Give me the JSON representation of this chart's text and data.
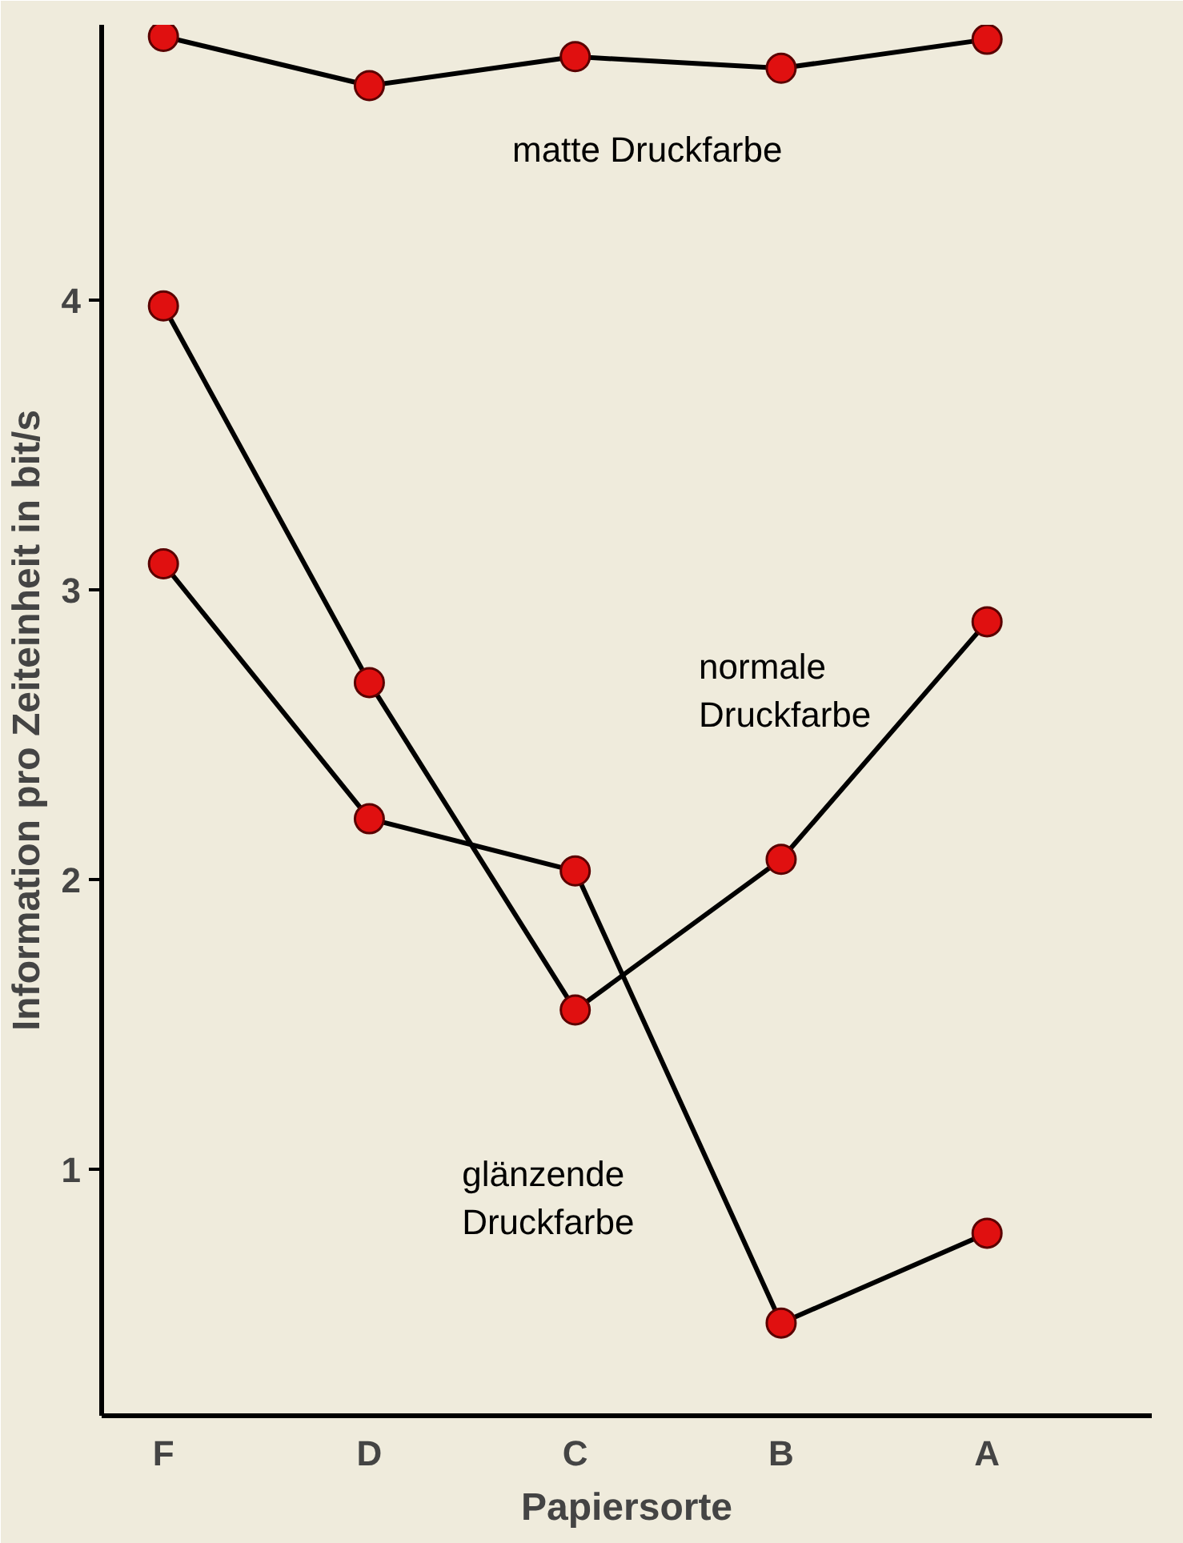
{
  "chart_data": {
    "type": "line",
    "categories": [
      "F",
      "D",
      "C",
      "B",
      "A"
    ],
    "xlabel": "Papiersorte",
    "ylabel": "Information pro Zeiteinheit in bit/s",
    "ylim": [
      0.15,
      4.95
    ],
    "yticks": [
      1,
      2,
      3,
      4
    ],
    "grid": false,
    "marker": "circle",
    "line_style": "solid",
    "series": [
      {
        "name": "matte Druckfarbe",
        "color": "#000000",
        "values": [
          4.91,
          4.74,
          4.84,
          4.8,
          4.9
        ]
      },
      {
        "name": "normale\nDruckfarbe",
        "color": "#000000",
        "values": [
          3.98,
          2.68,
          1.55,
          2.07,
          2.89
        ]
      },
      {
        "name": "glänzende\nDruckfarbe",
        "color": "#000000",
        "values": [
          3.09,
          2.21,
          2.03,
          0.47,
          0.78
        ]
      }
    ]
  }
}
